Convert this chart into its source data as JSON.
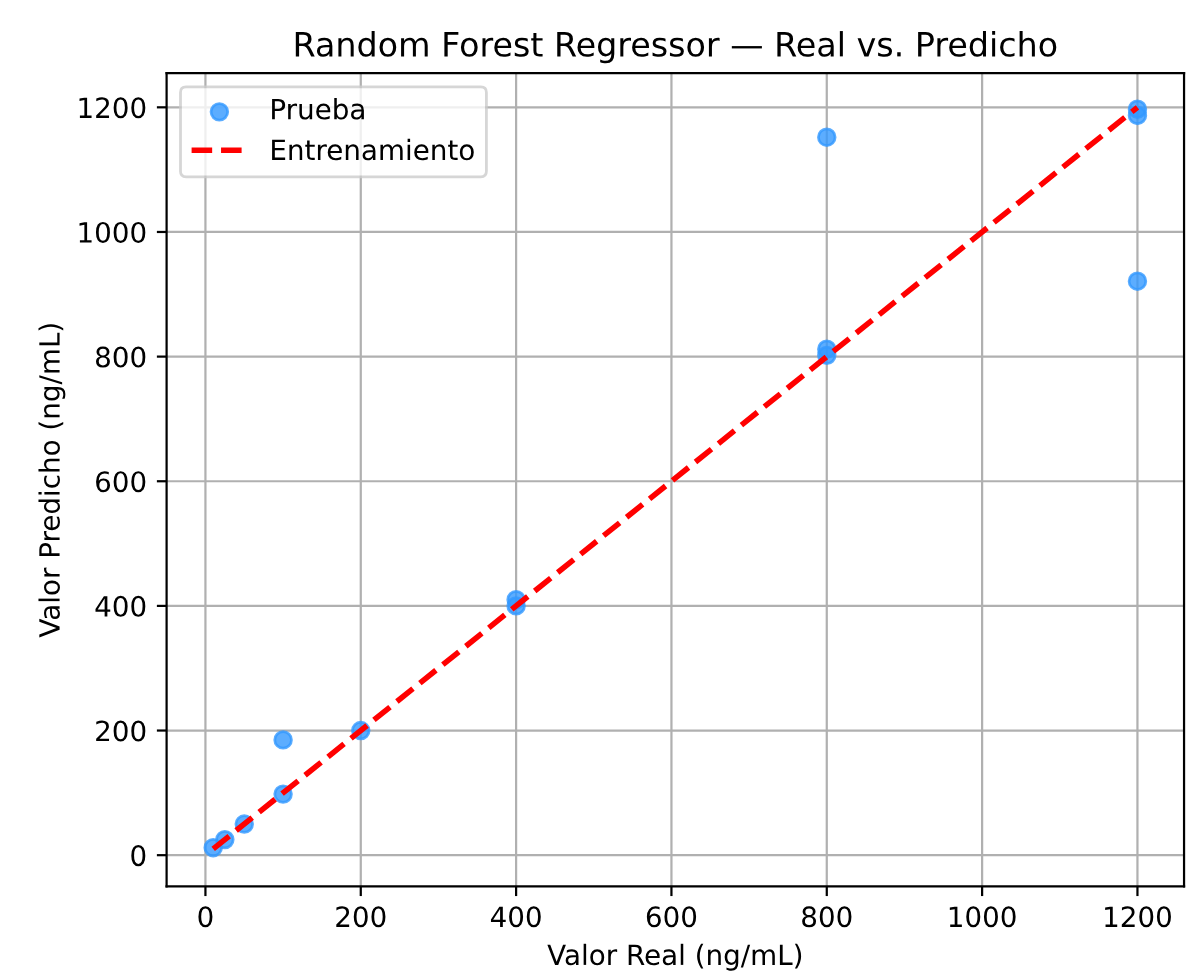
{
  "chart_data": {
    "type": "scatter",
    "title": "Random Forest Regressor — Real vs. Predicho",
    "xlabel": "Valor Real (ng/mL)",
    "ylabel": "Valor Predicho (ng/mL)",
    "series": [
      {
        "name": "Prueba",
        "marker": "circle",
        "color": "#3399ff",
        "x": [
          10,
          25,
          50,
          100,
          100,
          200,
          400,
          400,
          800,
          800,
          800,
          1200,
          1200,
          1200
        ],
        "values": [
          12,
          25,
          50,
          185,
          98,
          200,
          410,
          400,
          1152,
          812,
          802,
          1197,
          1187,
          921
        ]
      },
      {
        "name": "Entrenamiento",
        "type": "line",
        "color": "#ff0000",
        "line_style": "dashed",
        "x": [
          10,
          1200
        ],
        "values": [
          10,
          1200
        ]
      }
    ],
    "xlim": [
      -50,
      1260
    ],
    "ylim": [
      -50,
      1255
    ],
    "xticks": [
      0,
      200,
      400,
      600,
      800,
      1000,
      1200
    ],
    "yticks": [
      0,
      200,
      400,
      600,
      800,
      1000,
      1200
    ],
    "grid": true,
    "legend": "top left"
  }
}
